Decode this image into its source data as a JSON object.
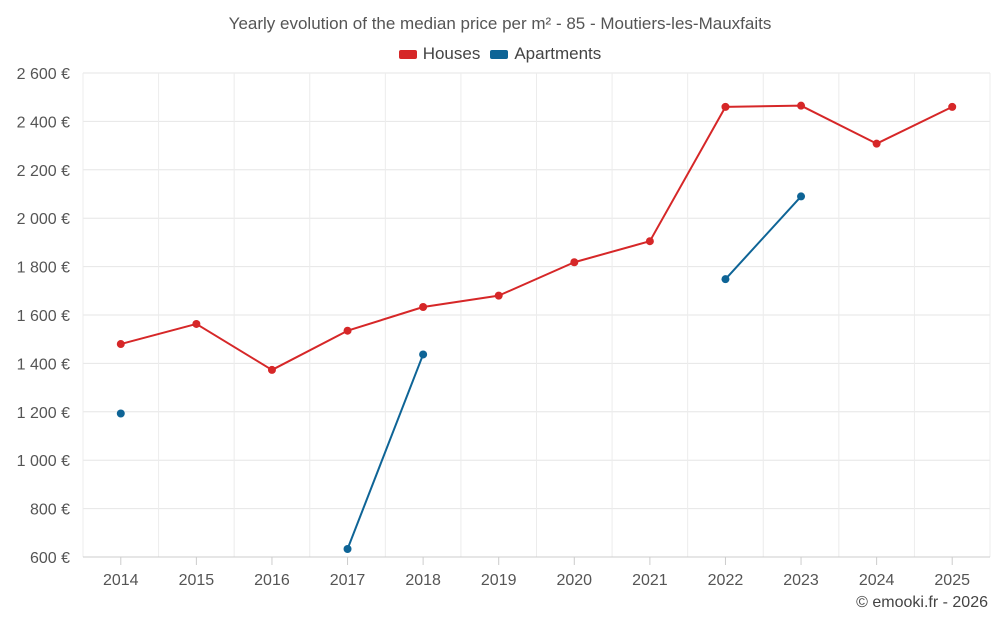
{
  "chart_data": {
    "type": "line",
    "title": "Yearly evolution of the median price per m² - 85 - Moutiers-les-Mauxfaits",
    "categories": [
      "2014",
      "2015",
      "2016",
      "2017",
      "2018",
      "2019",
      "2020",
      "2021",
      "2022",
      "2023",
      "2024",
      "2025"
    ],
    "ylim": [
      600,
      2600
    ],
    "yticks": [
      600,
      800,
      1000,
      1200,
      1400,
      1600,
      1800,
      2000,
      2200,
      2400,
      2600
    ],
    "ytick_labels": [
      "600 €",
      "800 €",
      "1 000 €",
      "1 200 €",
      "1 400 €",
      "1 600 €",
      "1 800 €",
      "2 000 €",
      "2 200 €",
      "2 400 €",
      "2 600 €"
    ],
    "grid": true,
    "legend_position": "top-center",
    "series": [
      {
        "name": "Houses",
        "color": "#d62728",
        "values": [
          1480,
          1563,
          1373,
          1535,
          1633,
          1680,
          1818,
          1905,
          2460,
          2465,
          2308,
          2460
        ]
      },
      {
        "name": "Apartments",
        "color": "#0e6496",
        "values": [
          1193,
          null,
          null,
          633,
          1437,
          null,
          null,
          null,
          1748,
          2090,
          null,
          null
        ]
      }
    ],
    "footer": "© emooki.fr - 2026"
  }
}
